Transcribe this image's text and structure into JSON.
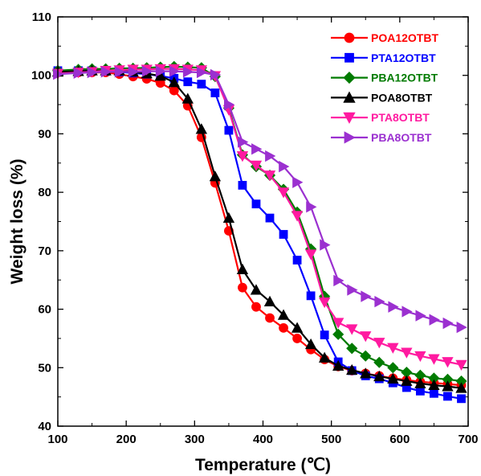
{
  "chart_data": {
    "type": "line",
    "xlabel": "Temperature (℃)",
    "ylabel": "Weight loss (%)",
    "xlim": [
      100,
      700
    ],
    "ylim": [
      40,
      110
    ],
    "xticks": [
      100,
      200,
      300,
      400,
      500,
      600,
      700
    ],
    "yticks": [
      40,
      50,
      60,
      70,
      80,
      90,
      100,
      110
    ],
    "grid": false,
    "legend_position": "top-right",
    "series": [
      {
        "name": "POA12OTBT",
        "color": "#ff0000",
        "marker": "circle",
        "x": [
          100,
          130,
          150,
          170,
          190,
          210,
          230,
          250,
          270,
          290,
          310,
          330,
          350,
          370,
          390,
          410,
          430,
          450,
          470,
          490,
          510,
          530,
          550,
          570,
          590,
          610,
          630,
          650,
          670,
          690
        ],
        "y": [
          100.5,
          100.5,
          100.5,
          100.5,
          100.2,
          99.8,
          99.4,
          98.7,
          97.4,
          94.8,
          89.4,
          81.6,
          73.4,
          63.7,
          60.4,
          58.5,
          56.8,
          55.0,
          53.1,
          51.4,
          50.2,
          49.5,
          49.0,
          48.6,
          48.2,
          47.9,
          47.6,
          47.4,
          47.2,
          47.0
        ]
      },
      {
        "name": "PTA12OTBT",
        "color": "#0000ff",
        "marker": "square",
        "x": [
          100,
          130,
          150,
          170,
          190,
          210,
          230,
          250,
          270,
          290,
          310,
          330,
          350,
          370,
          390,
          410,
          430,
          450,
          470,
          490,
          510,
          530,
          550,
          570,
          590,
          610,
          630,
          650,
          670,
          690
        ],
        "y": [
          100.8,
          100.8,
          100.8,
          100.7,
          100.6,
          100.4,
          100.2,
          99.9,
          99.5,
          98.9,
          98.5,
          97.0,
          90.6,
          81.2,
          78.0,
          75.6,
          72.8,
          68.4,
          62.3,
          55.6,
          51.0,
          49.5,
          48.6,
          48.1,
          47.4,
          46.6,
          46.0,
          45.6,
          45.1,
          44.7
        ]
      },
      {
        "name": "PBA12OTBT",
        "color": "#007b00",
        "marker": "diamond",
        "x": [
          100,
          130,
          150,
          170,
          190,
          210,
          230,
          250,
          270,
          290,
          310,
          330,
          350,
          370,
          390,
          410,
          430,
          450,
          470,
          490,
          510,
          530,
          550,
          570,
          590,
          610,
          630,
          650,
          670,
          690
        ],
        "y": [
          100.8,
          101.0,
          101.1,
          101.1,
          101.2,
          101.2,
          101.3,
          101.4,
          101.5,
          101.4,
          101.3,
          99.8,
          94.4,
          86.4,
          84.4,
          82.9,
          80.5,
          76.6,
          70.3,
          62.2,
          55.7,
          53.3,
          52.0,
          50.9,
          50.0,
          49.2,
          48.7,
          48.2,
          48.0,
          47.7
        ]
      },
      {
        "name": "POA8OTBT",
        "color": "#000000",
        "marker": "triangle-up",
        "x": [
          100,
          130,
          150,
          170,
          190,
          210,
          230,
          250,
          270,
          290,
          310,
          330,
          350,
          370,
          390,
          410,
          430,
          450,
          470,
          490,
          510,
          530,
          550,
          570,
          590,
          610,
          630,
          650,
          670,
          690
        ],
        "y": [
          100.6,
          100.7,
          100.8,
          100.8,
          100.8,
          100.6,
          100.3,
          99.9,
          98.8,
          96.0,
          90.8,
          82.7,
          75.6,
          66.8,
          63.3,
          61.3,
          59.0,
          56.8,
          54.0,
          51.7,
          50.3,
          49.6,
          49.0,
          48.5,
          48.1,
          47.7,
          47.3,
          47.0,
          46.8,
          46.5
        ]
      },
      {
        "name": "PTA8OTBT",
        "color": "#ff1aa0",
        "marker": "triangle-down",
        "x": [
          100,
          130,
          150,
          170,
          190,
          210,
          230,
          250,
          270,
          290,
          310,
          330,
          350,
          370,
          390,
          410,
          430,
          450,
          470,
          490,
          510,
          530,
          550,
          570,
          590,
          610,
          630,
          650,
          670,
          690
        ],
        "y": [
          100.3,
          100.5,
          100.6,
          100.8,
          100.9,
          101.0,
          101.0,
          101.1,
          101.1,
          101.0,
          100.9,
          99.9,
          94.1,
          86.2,
          84.6,
          82.9,
          80.0,
          76.0,
          69.4,
          61.2,
          57.7,
          56.6,
          55.4,
          54.3,
          53.4,
          52.6,
          52.0,
          51.5,
          51.0,
          50.5
        ]
      },
      {
        "name": "PBA8OTBT",
        "color": "#9b30d0",
        "marker": "triangle-right",
        "x": [
          100,
          130,
          150,
          170,
          190,
          210,
          230,
          250,
          270,
          290,
          310,
          330,
          350,
          370,
          390,
          410,
          430,
          450,
          470,
          490,
          510,
          530,
          550,
          570,
          590,
          610,
          630,
          650,
          670,
          690
        ],
        "y": [
          100.2,
          100.4,
          100.5,
          100.6,
          100.6,
          100.6,
          100.7,
          100.7,
          100.7,
          100.6,
          100.5,
          100.1,
          95.0,
          88.6,
          87.4,
          86.2,
          84.4,
          81.7,
          77.5,
          71.0,
          64.9,
          63.3,
          62.2,
          61.3,
          60.4,
          59.6,
          58.9,
          58.2,
          57.6,
          56.9
        ]
      }
    ]
  }
}
